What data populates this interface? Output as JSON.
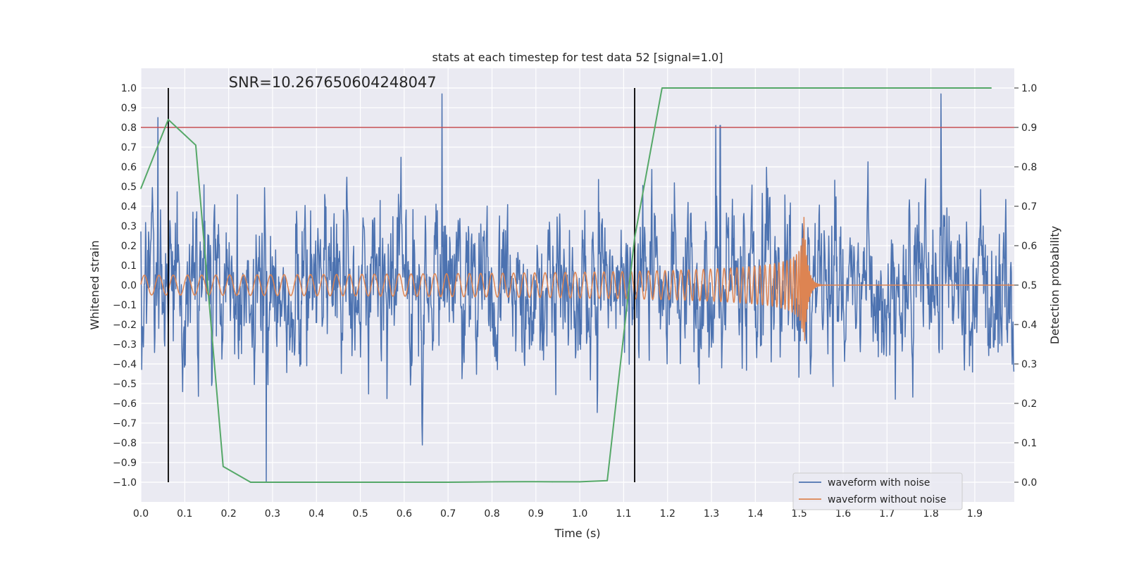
{
  "chart_data": {
    "type": "line",
    "title": "stats at each timestep for test data 52 [signal=1.0]",
    "xlabel": "Time (s)",
    "ylabel": "Whitened strain",
    "y2label": "Detection probability",
    "annotation": "SNR=10.267650604248047",
    "xlim": [
      0.0,
      1.99
    ],
    "ylim": [
      -1.1,
      1.1
    ],
    "y2lim": [
      -0.05,
      1.05
    ],
    "x_ticks": [
      0.0,
      0.1,
      0.2,
      0.3,
      0.4,
      0.5,
      0.6,
      0.7,
      0.8,
      0.9,
      1.0,
      1.1,
      1.2,
      1.3,
      1.4,
      1.5,
      1.6,
      1.7,
      1.8,
      1.9
    ],
    "x_tick_labels": [
      "0.0",
      "0.1",
      "0.2",
      "0.3",
      "0.4",
      "0.5",
      "0.6",
      "0.7",
      "0.8",
      "0.9",
      "1.0",
      "1.1",
      "1.2",
      "1.3",
      "1.4",
      "1.5",
      "1.6",
      "1.7",
      "1.8",
      "1.9"
    ],
    "y_ticks": [
      1.0,
      0.9,
      0.8,
      0.7,
      0.6,
      0.5,
      0.4,
      0.3,
      0.2,
      0.1,
      0.0,
      -0.1,
      -0.2,
      -0.3,
      -0.4,
      -0.5,
      -0.6,
      -0.7,
      -0.8,
      -0.9,
      -1.0
    ],
    "y_tick_labels": [
      "1.0",
      "0.9",
      "0.8",
      "0.7",
      "0.6",
      "0.5",
      "0.4",
      "0.3",
      "0.2",
      "0.1",
      "0.0",
      "−0.1",
      "−0.2",
      "−0.3",
      "−0.4",
      "−0.5",
      "−0.6",
      "−0.7",
      "−0.8",
      "−0.9",
      "−1.0"
    ],
    "y2_ticks": [
      1.0,
      0.9,
      0.8,
      0.7,
      0.6,
      0.5,
      0.4,
      0.3,
      0.2,
      0.1,
      0.0
    ],
    "y2_tick_labels": [
      "1.0",
      "0.9",
      "0.8",
      "0.7",
      "0.6",
      "0.5",
      "0.4",
      "0.3",
      "0.2",
      "0.1",
      "0.0"
    ],
    "grid": true,
    "legend_position": "bottom-right",
    "threshold_line": {
      "y2": 0.9,
      "color": "#c44e52"
    },
    "vertical_lines": [
      {
        "x": 0.0625,
        "color": "#000000"
      },
      {
        "x": 1.125,
        "color": "#000000"
      }
    ],
    "series": [
      {
        "name": "waveform with noise",
        "axis": "left",
        "color": "#4c72b0",
        "kind": "noise",
        "samples": 2048,
        "amplitude_std": 0.3,
        "seed": 52,
        "peaks": [
          {
            "x": 0.039,
            "y": 0.85
          },
          {
            "x": 0.286,
            "y": -1.0
          },
          {
            "x": 0.686,
            "y": 0.97
          },
          {
            "x": 1.823,
            "y": 0.97
          },
          {
            "x": 1.31,
            "y": 0.81
          },
          {
            "x": 1.32,
            "y": 0.81
          }
        ]
      },
      {
        "name": "waveform without noise",
        "axis": "left",
        "color": "#dd8452",
        "kind": "chirp",
        "merger_time": 1.51,
        "start_frequency": 30,
        "start_amplitude": 0.05,
        "peak_amplitude": 0.38
      },
      {
        "name": "detection probability",
        "axis": "right",
        "color": "#55a868",
        "x": [
          0.0,
          0.0625,
          0.125,
          0.1875,
          0.25,
          0.3125,
          0.375,
          0.4375,
          0.5,
          0.5625,
          0.625,
          0.6875,
          0.75,
          0.8125,
          0.875,
          0.9375,
          1.0,
          1.0625,
          1.125,
          1.1875,
          1.25,
          1.3125,
          1.375,
          1.4375,
          1.5,
          1.5625,
          1.625,
          1.6875,
          1.75,
          1.8125,
          1.875,
          1.9375
        ],
        "y": [
          0.745,
          0.92,
          0.855,
          0.04,
          0.0,
          0.0,
          0.0,
          0.0,
          0.0,
          0.0,
          0.0,
          0.0,
          0.0005,
          0.001,
          0.0015,
          0.001,
          0.001,
          0.004,
          0.62,
          1.0,
          1.0,
          1.0,
          1.0,
          1.0,
          1.0,
          1.0,
          1.0,
          1.0,
          1.0,
          1.0,
          1.0,
          1.0
        ]
      }
    ]
  }
}
